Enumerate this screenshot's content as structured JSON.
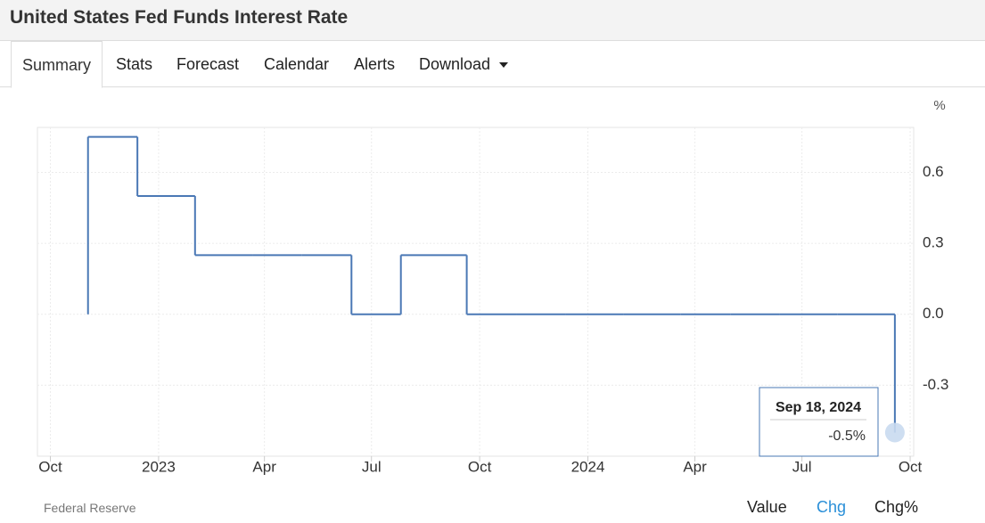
{
  "header": {
    "title": "United States Fed Funds Interest Rate"
  },
  "tabs": [
    "Summary",
    "Stats",
    "Forecast",
    "Calendar",
    "Alerts",
    "Download"
  ],
  "chart_data": {
    "type": "step-line",
    "y_unit": "%",
    "x": [
      "2022-11-02",
      "2022-12-14",
      "2023-02-01",
      "2023-03-22",
      "2023-05-03",
      "2023-06-14",
      "2023-07-26",
      "2023-09-20",
      "2023-11-01",
      "2023-12-13",
      "2024-01-31",
      "2024-03-20",
      "2024-05-01",
      "2024-06-12",
      "2024-07-31",
      "2024-09-18"
    ],
    "series": [
      {
        "name": "Chg",
        "color": "#4a78b5",
        "values": [
          0.75,
          0.5,
          0.25,
          0.25,
          0.25,
          0,
          0.25,
          0,
          0,
          0,
          0,
          0,
          0,
          0,
          0,
          -0.5
        ]
      }
    ],
    "xlim": [
      "2022-09-20",
      "2024-10-04"
    ],
    "xticks": [
      {
        "value": "2022-10-01",
        "label": "Oct"
      },
      {
        "value": "2023-01-01",
        "label": "2023"
      },
      {
        "value": "2023-04-01",
        "label": "Apr"
      },
      {
        "value": "2023-07-01",
        "label": "Jul"
      },
      {
        "value": "2023-10-01",
        "label": "Oct"
      },
      {
        "value": "2024-01-01",
        "label": "2024"
      },
      {
        "value": "2024-04-01",
        "label": "Apr"
      },
      {
        "value": "2024-07-01",
        "label": "Jul"
      },
      {
        "value": "2024-10-01",
        "label": "Oct"
      }
    ],
    "ylim": [
      -0.6,
      0.79
    ],
    "yticks": [
      -0.3,
      {
        "value": 0,
        "label": "0.0"
      },
      0.3,
      0.6
    ],
    "grid": true,
    "tooltip": {
      "date": "Sep 18, 2024",
      "value": "-0.5%"
    }
  },
  "footer": {
    "source": "Federal Reserve",
    "toggles": [
      "Value",
      "Chg",
      "Chg%"
    ],
    "active_toggle": 1
  }
}
